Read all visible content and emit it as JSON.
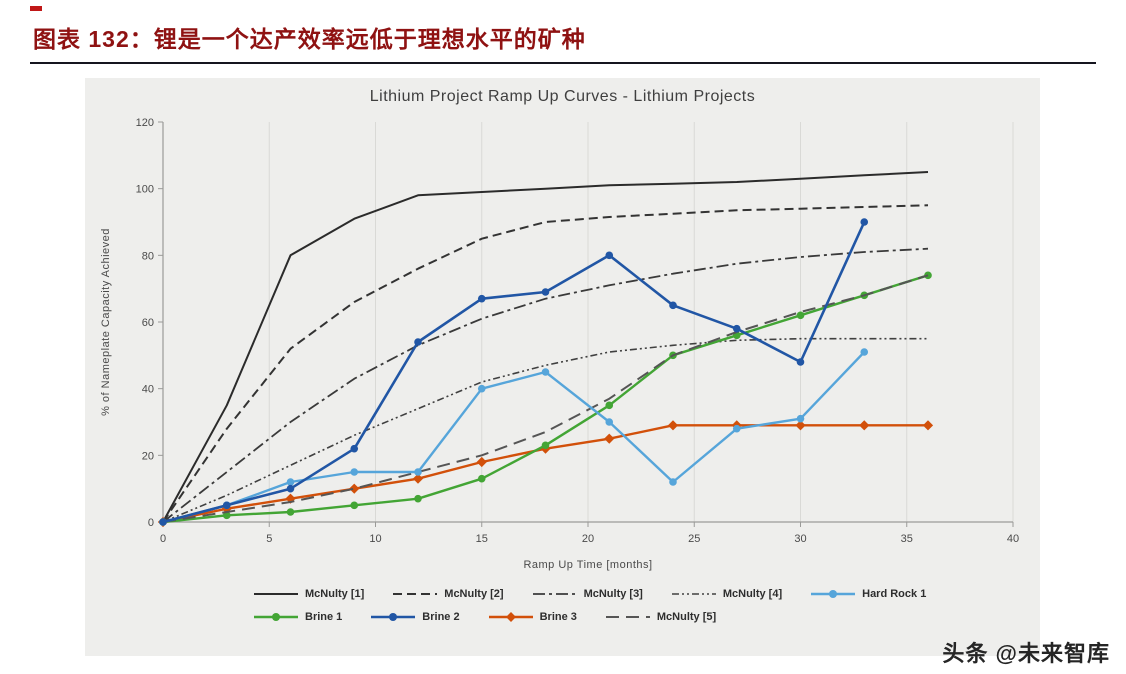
{
  "header": {
    "title": "图表 132：锂是一个达产效率远低于理想水平的矿种"
  },
  "watermark": "头条 @未来智库",
  "chart_data": {
    "type": "line",
    "title": "Lithium Project Ramp Up Curves - Lithium Projects",
    "xlabel": "Ramp Up Time [months]",
    "ylabel": "% of Nameplate Capacity Achieved",
    "xlim": [
      0,
      40
    ],
    "ylim": [
      0,
      120
    ],
    "xticks": [
      0,
      5,
      10,
      15,
      20,
      25,
      30,
      35,
      40
    ],
    "yticks": [
      0,
      20,
      40,
      60,
      80,
      100,
      120
    ],
    "grid": "vertical",
    "legend_position": "bottom",
    "series": [
      {
        "name": "McNulty [1]",
        "color": "#2b2b2b",
        "dash": "",
        "width": 2,
        "marker": "",
        "x": [
          0,
          3,
          6,
          9,
          12,
          15,
          18,
          21,
          24,
          27,
          30,
          33,
          36
        ],
        "y": [
          0,
          35,
          80,
          91,
          98,
          99,
          100,
          101,
          101.5,
          102,
          103,
          104,
          105
        ]
      },
      {
        "name": "McNulty [2]",
        "color": "#333333",
        "dash": "9 5",
        "width": 2,
        "marker": "",
        "x": [
          0,
          3,
          6,
          9,
          12,
          15,
          18,
          21,
          24,
          27,
          30,
          33,
          36
        ],
        "y": [
          0,
          28,
          52,
          66,
          76,
          85,
          90,
          91.5,
          92.5,
          93.5,
          94,
          94.5,
          95
        ]
      },
      {
        "name": "McNulty [3]",
        "color": "#3a3a3a",
        "dash": "12 4 3 4",
        "width": 1.8,
        "marker": "",
        "x": [
          0,
          3,
          6,
          9,
          12,
          15,
          18,
          21,
          24,
          27,
          30,
          33,
          36
        ],
        "y": [
          0,
          15,
          30,
          43,
          53,
          61,
          67,
          71,
          74.5,
          77.5,
          79.5,
          81,
          82
        ]
      },
      {
        "name": "McNulty [4]",
        "color": "#404040",
        "dash": "7 3 2 3 2 3",
        "width": 1.6,
        "marker": "",
        "x": [
          0,
          3,
          6,
          9,
          12,
          15,
          18,
          21,
          24,
          27,
          30,
          33,
          36
        ],
        "y": [
          0,
          8,
          17,
          26,
          34,
          42,
          47,
          51,
          53,
          54.5,
          55,
          55,
          55
        ]
      },
      {
        "name": "Hard Rock 1",
        "color": "#56a5da",
        "dash": "",
        "width": 2.4,
        "marker": "circle",
        "x": [
          0,
          3,
          6,
          9,
          12,
          15,
          18,
          21,
          24,
          27,
          30,
          33
        ],
        "y": [
          0,
          5,
          12,
          15,
          15,
          40,
          45,
          30,
          12,
          28,
          31,
          51
        ]
      },
      {
        "name": "Brine 1",
        "color": "#43a535",
        "dash": "",
        "width": 2.4,
        "marker": "circle",
        "x": [
          0,
          3,
          6,
          9,
          12,
          15,
          18,
          21,
          24,
          27,
          30,
          33,
          36
        ],
        "y": [
          0,
          2,
          3,
          5,
          7,
          13,
          23,
          35,
          50,
          56,
          62,
          68,
          74
        ]
      },
      {
        "name": "Brine 2",
        "color": "#2156a5",
        "dash": "",
        "width": 2.6,
        "marker": "circle",
        "x": [
          0,
          3,
          6,
          9,
          12,
          15,
          18,
          21,
          24,
          27,
          30,
          33
        ],
        "y": [
          0,
          5,
          10,
          22,
          54,
          67,
          69,
          80,
          65,
          58,
          48,
          90
        ]
      },
      {
        "name": "Brine 3",
        "color": "#d2500a",
        "dash": "",
        "width": 2.4,
        "marker": "diamond",
        "x": [
          0,
          3,
          6,
          9,
          12,
          15,
          18,
          21,
          24,
          27,
          30,
          33,
          36
        ],
        "y": [
          0,
          4,
          7,
          10,
          13,
          18,
          22,
          25,
          29,
          29,
          29,
          29,
          29
        ]
      },
      {
        "name": "McNulty [5]",
        "color": "#555555",
        "dash": "13 7",
        "width": 2,
        "marker": "",
        "x": [
          0,
          3,
          6,
          9,
          12,
          15,
          18,
          21,
          24,
          27,
          30,
          33,
          36
        ],
        "y": [
          0,
          3,
          6,
          10,
          15,
          20,
          27,
          37,
          50,
          57,
          63,
          68,
          74
        ]
      }
    ],
    "draw_order": [
      0,
      1,
      2,
      3,
      7,
      5,
      8,
      4,
      6
    ],
    "legend_rows": [
      [
        0,
        1,
        2,
        3,
        4
      ],
      [
        5,
        6,
        7,
        8
      ]
    ]
  }
}
